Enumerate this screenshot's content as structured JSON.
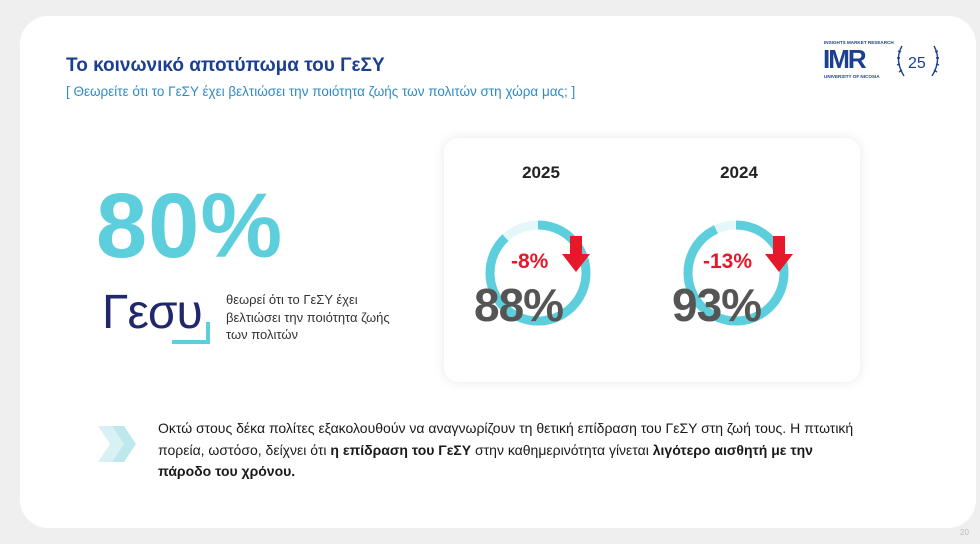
{
  "header": {
    "title": "Το κοινωνικό αποτύπωμα του ΓεΣΥ",
    "subtitle": "[ Θεωρείτε ότι το ΓεΣΥ έχει βελτιώσει την ποιότητα ζωής των πολιτών στη χώρα μας; ]"
  },
  "logo": {
    "top_line": "INSIGHTS MARKET RESEARCH",
    "mark": "IMR",
    "bottom_line": "UNIVERSITY OF NICOSIA",
    "anniversary": "25"
  },
  "headline": {
    "percent": "80%",
    "brand": "Γεσυ",
    "description": "θεωρεί ότι το ΓεΣΥ έχει βελτιώσει την ποιότητα ζωής των πολιτών"
  },
  "comparison": [
    {
      "year": "2025",
      "value": "88%",
      "change": "-8%",
      "fill": 0.88
    },
    {
      "year": "2024",
      "value": "93%",
      "change": "-13%",
      "fill": 0.93
    }
  ],
  "summary": {
    "part1": "Οκτώ στους δέκα πολίτες εξακολουθούν να αναγνωρίζουν τη θετική επίδραση του ΓεΣΥ στη ζωή τους. Η πτωτική πορεία, ωστόσο, δείχνει ότι ",
    "bold1": "η επίδραση του ΓεΣΥ",
    "part2": " στην καθημερινότητα γίνεται ",
    "bold2": "λιγότερο αισθητή με την πάροδο του χρόνου."
  },
  "page_number": "20",
  "colors": {
    "accent": "#5dcfdc",
    "title": "#1c3f8f",
    "subtitle": "#2e8bc4",
    "down": "#e5192a"
  }
}
